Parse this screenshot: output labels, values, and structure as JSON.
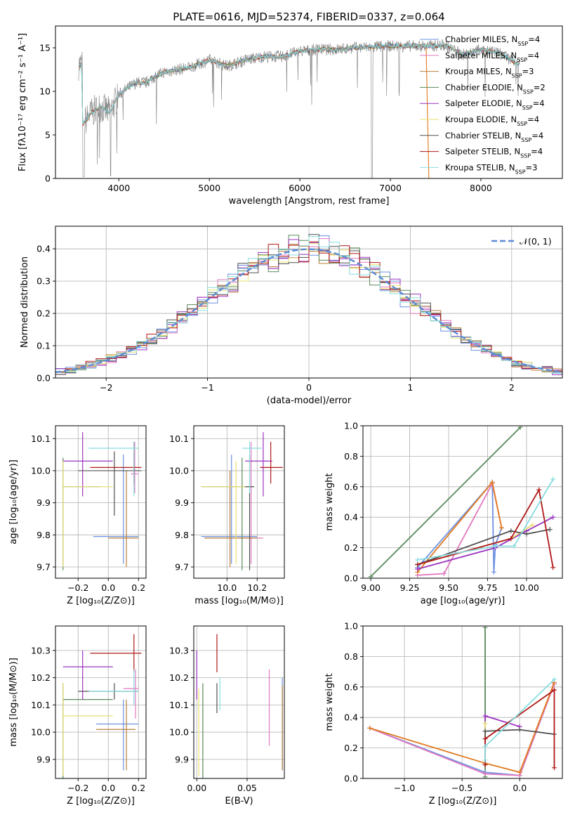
{
  "title": "PLATE=0616, MJD=52374, FIBERID=0337, z=0.064",
  "colors": {
    "c0": "#6d90e0",
    "c1": "#e079c0",
    "c2": "#b8803a",
    "c3": "#5a8a5a",
    "c4": "#9a33c0",
    "c5": "#e8e070",
    "c6": "#505050",
    "c7": "#b01818",
    "c8": "#88dde0",
    "sigma_yellow": "#cce060",
    "orange_line": "#e07a20",
    "gray_spectrum": "#808080",
    "normal_curve": "#5b8bd6"
  },
  "chart_data": [
    {
      "id": "spectrum",
      "type": "line",
      "title": "PLATE=0616, MJD=52374, FIBERID=0337, z=0.064",
      "xlabel": "wavelength [Angstrom, rest frame]",
      "ylabel": "Flux [fλ10⁻¹⁷ erg cm⁻² s⁻¹ A⁻¹]",
      "xlim": [
        3300,
        8900
      ],
      "ylim": [
        0,
        17.5
      ],
      "xticks": [
        "4000",
        "5000",
        "6000",
        "7000",
        "8000"
      ],
      "yticks": [
        "0",
        "5",
        "10",
        "15"
      ],
      "legend_position": "right",
      "legend": [
        {
          "text": "Chabrier MILES, N",
          "sub": "SSP",
          "tail": "=4",
          "color": "c0"
        },
        {
          "text": "Salpeter MILES, N",
          "sub": "SSP",
          "tail": "=4",
          "color": "c1"
        },
        {
          "text": "Kroupa MILES, N",
          "sub": "SSP",
          "tail": "=3",
          "color": "c2"
        },
        {
          "text": "Chabrier ELODIE, N",
          "sub": "SSP",
          "tail": "=2",
          "color": "c3"
        },
        {
          "text": "Salpeter ELODIE, N",
          "sub": "SSP",
          "tail": "=4",
          "color": "c4"
        },
        {
          "text": "Kroupa ELODIE, N",
          "sub": "SSP",
          "tail": "=4",
          "color": "c5"
        },
        {
          "text": "Chabrier STELIB, N",
          "sub": "SSP",
          "tail": "=4",
          "color": "c6"
        },
        {
          "text": "Salpeter STELIB, N",
          "sub": "SSP",
          "tail": "=4",
          "color": "c7"
        },
        {
          "text": "Kroupa STELIB, N",
          "sub": "SSP",
          "tail": "=3",
          "color": "c8"
        }
      ],
      "continuum": [
        [
          3600,
          6.2
        ],
        [
          3700,
          7.6
        ],
        [
          3800,
          8.2
        ],
        [
          3900,
          7.6
        ],
        [
          4000,
          9.6
        ],
        [
          4100,
          10.4
        ],
        [
          4200,
          11.0
        ],
        [
          4300,
          11.0
        ],
        [
          4400,
          11.7
        ],
        [
          4500,
          12.2
        ],
        [
          4600,
          12.4
        ],
        [
          4800,
          12.8
        ],
        [
          5000,
          13.6
        ],
        [
          5200,
          12.9
        ],
        [
          5400,
          13.6
        ],
        [
          5600,
          14.0
        ],
        [
          5800,
          14.0
        ],
        [
          6000,
          14.6
        ],
        [
          6200,
          14.8
        ],
        [
          6400,
          14.8
        ],
        [
          6600,
          15.0
        ],
        [
          6800,
          15.1
        ],
        [
          7000,
          15.2
        ],
        [
          7200,
          15.2
        ],
        [
          7400,
          15.2
        ],
        [
          7600,
          15.3
        ],
        [
          7800,
          14.2
        ],
        [
          8000,
          14.8
        ],
        [
          8200,
          14.4
        ],
        [
          8350,
          13.5
        ],
        [
          8430,
          13.0
        ]
      ]
    },
    {
      "id": "residuals",
      "type": "histogram",
      "xlabel": "(data-model)/error",
      "ylabel": "Normed distribution",
      "xlim": [
        -2.5,
        2.5
      ],
      "ylim": [
        0,
        0.47
      ],
      "xticks": [
        "−2",
        "−1",
        "0",
        "1",
        "2"
      ],
      "yticks": [
        "0.0",
        "0.1",
        "0.2",
        "0.3",
        "0.4"
      ],
      "legend_text": "𝒩(0, 1)",
      "legend_position": "top-right"
    },
    {
      "id": "age_vs_Z",
      "type": "errorbar",
      "xlabel": "Z [log₁₀(Z/Z⊙)]",
      "ylabel": "age  [log₁₀(age/yr)]",
      "xlim": [
        -0.35,
        0.25
      ],
      "ylim": [
        9.665,
        10.14
      ],
      "xticks": [
        "−0.2",
        "0.0",
        "0.2"
      ],
      "yticks": [
        "9.7",
        "9.8",
        "9.9",
        "10.0",
        "10.1"
      ],
      "points": [
        {
          "c": "c0",
          "x": 0.1,
          "xl": -0.1,
          "xh": 0.2,
          "y": 9.795,
          "yl": 9.71,
          "yh": 10.05
        },
        {
          "c": "c1",
          "x": 0.175,
          "xl": 0.15,
          "xh": 0.2,
          "y": 9.99,
          "yl": 9.93,
          "yh": 10.09
        },
        {
          "c": "c2",
          "x": 0.12,
          "xl": 0.0,
          "xh": 0.2,
          "y": 9.79,
          "yl": 9.7,
          "yh": 10.0
        },
        {
          "c": "c3",
          "x": -0.3,
          "xl": -0.3,
          "xh": -0.05,
          "y": 9.95,
          "yl": 9.69,
          "yh": 10.04
        },
        {
          "c": "c4",
          "x": -0.17,
          "xl": -0.3,
          "xh": 0.03,
          "y": 10.03,
          "yl": 9.92,
          "yh": 10.12
        },
        {
          "c": "c5",
          "x": -0.3,
          "xl": -0.3,
          "xh": 0.03,
          "y": 9.95,
          "yl": 9.7,
          "yh": 10.03
        },
        {
          "c": "c6",
          "x": 0.04,
          "xl": -0.2,
          "xh": 0.22,
          "y": 10.0,
          "yl": 9.86,
          "yh": 10.06
        },
        {
          "c": "c7",
          "x": 0.17,
          "xl": -0.12,
          "xh": 0.22,
          "y": 10.01,
          "yl": 9.96,
          "yh": 10.09
        },
        {
          "c": "c8",
          "x": 0.17,
          "xl": -0.13,
          "xh": 0.2,
          "y": 10.07,
          "yl": 9.92,
          "yh": 10.09
        }
      ]
    },
    {
      "id": "age_vs_mass",
      "type": "errorbar",
      "xlabel": "mass [log₁₀(M/M⊙)]",
      "ylabel": "",
      "xlim": [
        9.78,
        10.38
      ],
      "ylim": [
        9.665,
        10.14
      ],
      "xticks": [
        "10.0",
        "10.2"
      ],
      "yticks": [
        "9.7",
        "9.8",
        "9.9",
        "10.0",
        "10.1"
      ],
      "points": [
        {
          "c": "c0",
          "x": 10.03,
          "xl": 9.83,
          "xh": 10.2,
          "y": 9.795,
          "yl": 9.71,
          "yh": 10.05
        },
        {
          "c": "c1",
          "x": 10.16,
          "xl": 10.06,
          "xh": 10.24,
          "y": 9.79,
          "yl": 9.71,
          "yh": 10.09
        },
        {
          "c": "c2",
          "x": 10.02,
          "xl": 9.85,
          "xh": 10.2,
          "y": 9.79,
          "yl": 9.7,
          "yh": 10.0
        },
        {
          "c": "c3",
          "x": 10.1,
          "xl": 9.83,
          "xh": 10.18,
          "y": 9.95,
          "yl": 9.69,
          "yh": 10.04
        },
        {
          "c": "c4",
          "x": 10.24,
          "xl": 10.12,
          "xh": 10.3,
          "y": 10.03,
          "yl": 9.92,
          "yh": 10.12
        },
        {
          "c": "c5",
          "x": 10.06,
          "xl": 9.83,
          "xh": 10.18,
          "y": 9.95,
          "yl": 9.71,
          "yh": 10.03
        },
        {
          "c": "c6",
          "x": 10.15,
          "xl": 10.12,
          "xh": 10.18,
          "y": 9.95,
          "yl": 9.69,
          "yh": 10.05
        },
        {
          "c": "c7",
          "x": 10.29,
          "xl": 10.22,
          "xh": 10.37,
          "y": 10.01,
          "yl": 9.96,
          "yh": 10.09
        },
        {
          "c": "c8",
          "x": 10.15,
          "xl": 10.1,
          "xh": 10.23,
          "y": 10.07,
          "yl": 9.93,
          "yh": 10.09
        }
      ]
    },
    {
      "id": "mass_vs_Z",
      "type": "errorbar",
      "xlabel": "Z [log₁₀(Z/Z⊙)]",
      "ylabel": "mass [log₁₀(M/M⊙)]",
      "xlim": [
        -0.35,
        0.25
      ],
      "ylim": [
        9.83,
        10.39
      ],
      "xticks": [
        "−0.2",
        "0.0",
        "0.2"
      ],
      "yticks": [
        "9.9",
        "10.0",
        "10.1",
        "10.2",
        "10.3"
      ],
      "points": [
        {
          "c": "c0",
          "x": 0.1,
          "xl": -0.08,
          "xh": 0.2,
          "y": 10.03,
          "yl": 9.86,
          "yh": 10.12
        },
        {
          "c": "c1",
          "x": 0.18,
          "xl": 0.1,
          "xh": 0.2,
          "y": 10.16,
          "yl": 10.05,
          "yh": 10.23
        },
        {
          "c": "c2",
          "x": 0.12,
          "xl": -0.08,
          "xh": 0.18,
          "y": 10.01,
          "yl": 9.86,
          "yh": 10.12
        },
        {
          "c": "c3",
          "x": -0.3,
          "xl": -0.3,
          "xh": 0.03,
          "y": 10.12,
          "yl": 9.83,
          "yh": 10.18
        },
        {
          "c": "c4",
          "x": -0.17,
          "xl": -0.3,
          "xh": 0.03,
          "y": 10.24,
          "yl": 10.12,
          "yh": 10.3
        },
        {
          "c": "c5",
          "x": -0.3,
          "xl": -0.3,
          "xh": 0.03,
          "y": 10.06,
          "yl": 9.84,
          "yh": 10.18
        },
        {
          "c": "c6",
          "x": 0.04,
          "xl": -0.2,
          "xh": 0.2,
          "y": 10.15,
          "yl": 10.12,
          "yh": 10.18
        },
        {
          "c": "c7",
          "x": 0.17,
          "xl": -0.12,
          "xh": 0.22,
          "y": 10.29,
          "yl": 10.22,
          "yh": 10.36
        },
        {
          "c": "c8",
          "x": 0.17,
          "xl": -0.13,
          "xh": 0.2,
          "y": 10.15,
          "yl": 10.1,
          "yh": 10.23
        }
      ]
    },
    {
      "id": "mass_vs_ebv",
      "type": "errorbar",
      "xlabel": "E(B-V)",
      "ylabel": "",
      "xlim": [
        -0.003,
        0.087
      ],
      "ylim": [
        9.83,
        10.39
      ],
      "xticks": [
        "0.00",
        "0.05"
      ],
      "yticks": [
        "9.9",
        "10.0",
        "10.1",
        "10.2",
        "10.3"
      ],
      "points": [
        {
          "c": "c4",
          "x": 0.0,
          "y": 10.24,
          "yl": 10.12,
          "yh": 10.3
        },
        {
          "c": "c5",
          "x": 0.002,
          "y": 10.06,
          "yl": 9.84,
          "yh": 10.16
        },
        {
          "c": "c3",
          "x": 0.006,
          "y": 10.12,
          "yl": 9.83,
          "yh": 10.18
        },
        {
          "c": "c6",
          "x": 0.02,
          "y": 10.15,
          "yl": 10.07,
          "yh": 10.18
        },
        {
          "c": "c7",
          "x": 0.02,
          "y": 10.29,
          "yl": 10.22,
          "yh": 10.36
        },
        {
          "c": "c8",
          "x": 0.023,
          "y": 10.15,
          "yl": 10.08,
          "yh": 10.2
        },
        {
          "c": "c1",
          "x": 0.072,
          "y": 10.16,
          "yl": 9.95,
          "yh": 10.23
        },
        {
          "c": "c0",
          "x": 0.085,
          "y": 10.03,
          "yl": 9.86,
          "yh": 10.2
        },
        {
          "c": "c2",
          "x": 0.085,
          "y": 10.01,
          "yl": 9.86,
          "yh": 10.17
        }
      ]
    },
    {
      "id": "weight_vs_age",
      "type": "line",
      "xlabel": "age  [log₁₀(age/yr)]",
      "ylabel": "mass weight",
      "xlim": [
        8.95,
        10.23
      ],
      "ylim": [
        0,
        1.0
      ],
      "xticks": [
        "9.00",
        "9.25",
        "9.50",
        "9.75",
        "10.00"
      ],
      "yticks": [
        "0.0",
        "0.2",
        "0.4",
        "0.6",
        "0.8",
        "1.0"
      ],
      "series": [
        {
          "c": "c3",
          "x": [
            9.0,
            9.96
          ],
          "y": [
            0.01,
            0.99
          ]
        },
        {
          "c": "c0",
          "x": [
            9.3,
            9.78,
            9.79,
            9.8,
            9.84
          ],
          "y": [
            0.07,
            0.63,
            0.04,
            0.22,
            0.33
          ]
        },
        {
          "c": "c1",
          "x": [
            9.3,
            9.47,
            9.78,
            9.84
          ],
          "y": [
            0.02,
            0.03,
            0.62,
            0.33
          ]
        },
        {
          "c": "orange_line",
          "x": [
            9.3,
            9.78,
            9.84
          ],
          "y": [
            0.04,
            0.63,
            0.33
          ]
        },
        {
          "c": "c4",
          "x": [
            9.3,
            9.8,
            10.0,
            10.17
          ],
          "y": [
            0.06,
            0.2,
            0.31,
            0.4
          ]
        },
        {
          "c": "c5",
          "x": [
            9.3,
            9.9,
            10.04
          ],
          "y": [
            0.09,
            0.26,
            0.35
          ]
        },
        {
          "c": "c6",
          "x": [
            9.3,
            9.9,
            10.0,
            10.15
          ],
          "y": [
            0.09,
            0.31,
            0.29,
            0.32
          ]
        },
        {
          "c": "c7",
          "x": [
            9.3,
            9.9,
            10.08,
            10.17
          ],
          "y": [
            0.09,
            0.26,
            0.58,
            0.07
          ]
        },
        {
          "c": "c8",
          "x": [
            9.3,
            9.8,
            9.92,
            10.17
          ],
          "y": [
            0.12,
            0.21,
            0.21,
            0.65
          ]
        }
      ]
    },
    {
      "id": "weight_vs_Z",
      "type": "line",
      "xlabel": "Z [log₁₀(Z/Z⊙)]",
      "ylabel": "mass weight",
      "xlim": [
        -1.36,
        0.37
      ],
      "ylim": [
        0,
        1.0
      ],
      "xticks": [
        "−1.0",
        "−0.5",
        "0.0"
      ],
      "yticks": [
        "0.0",
        "0.2",
        "0.4",
        "0.6",
        "0.8",
        "1.0"
      ],
      "series": [
        {
          "c": "c3",
          "x": [
            -0.3,
            -0.3
          ],
          "y": [
            0.01,
            0.99
          ]
        },
        {
          "c": "c0",
          "x": [
            -1.3,
            -0.3,
            0.0,
            0.3
          ],
          "y": [
            0.33,
            0.04,
            0.02,
            0.62
          ]
        },
        {
          "c": "c1",
          "x": [
            -1.3,
            -0.3,
            0.0,
            0.3
          ],
          "y": [
            0.33,
            0.03,
            0.02,
            0.62
          ]
        },
        {
          "c": "orange_line",
          "x": [
            -1.3,
            -0.3,
            0.0,
            0.3
          ],
          "y": [
            0.33,
            0.1,
            0.04,
            0.63
          ]
        },
        {
          "c": "c4",
          "x": [
            -0.3,
            -0.3,
            0.0
          ],
          "y": [
            0.26,
            0.41,
            0.34
          ]
        },
        {
          "c": "c5",
          "x": [
            -0.3,
            -0.3
          ],
          "y": [
            0.09,
            0.36
          ]
        },
        {
          "c": "c6",
          "x": [
            -0.3,
            -0.3,
            0.0,
            0.3
          ],
          "y": [
            0.09,
            0.31,
            0.32,
            0.29
          ]
        },
        {
          "c": "c7",
          "x": [
            -0.3,
            -0.3,
            0.3,
            0.3
          ],
          "y": [
            0.09,
            0.26,
            0.58,
            0.07
          ]
        },
        {
          "c": "c8",
          "x": [
            -0.3,
            -0.3,
            0.3
          ],
          "y": [
            0.12,
            0.21,
            0.65
          ]
        }
      ]
    }
  ]
}
